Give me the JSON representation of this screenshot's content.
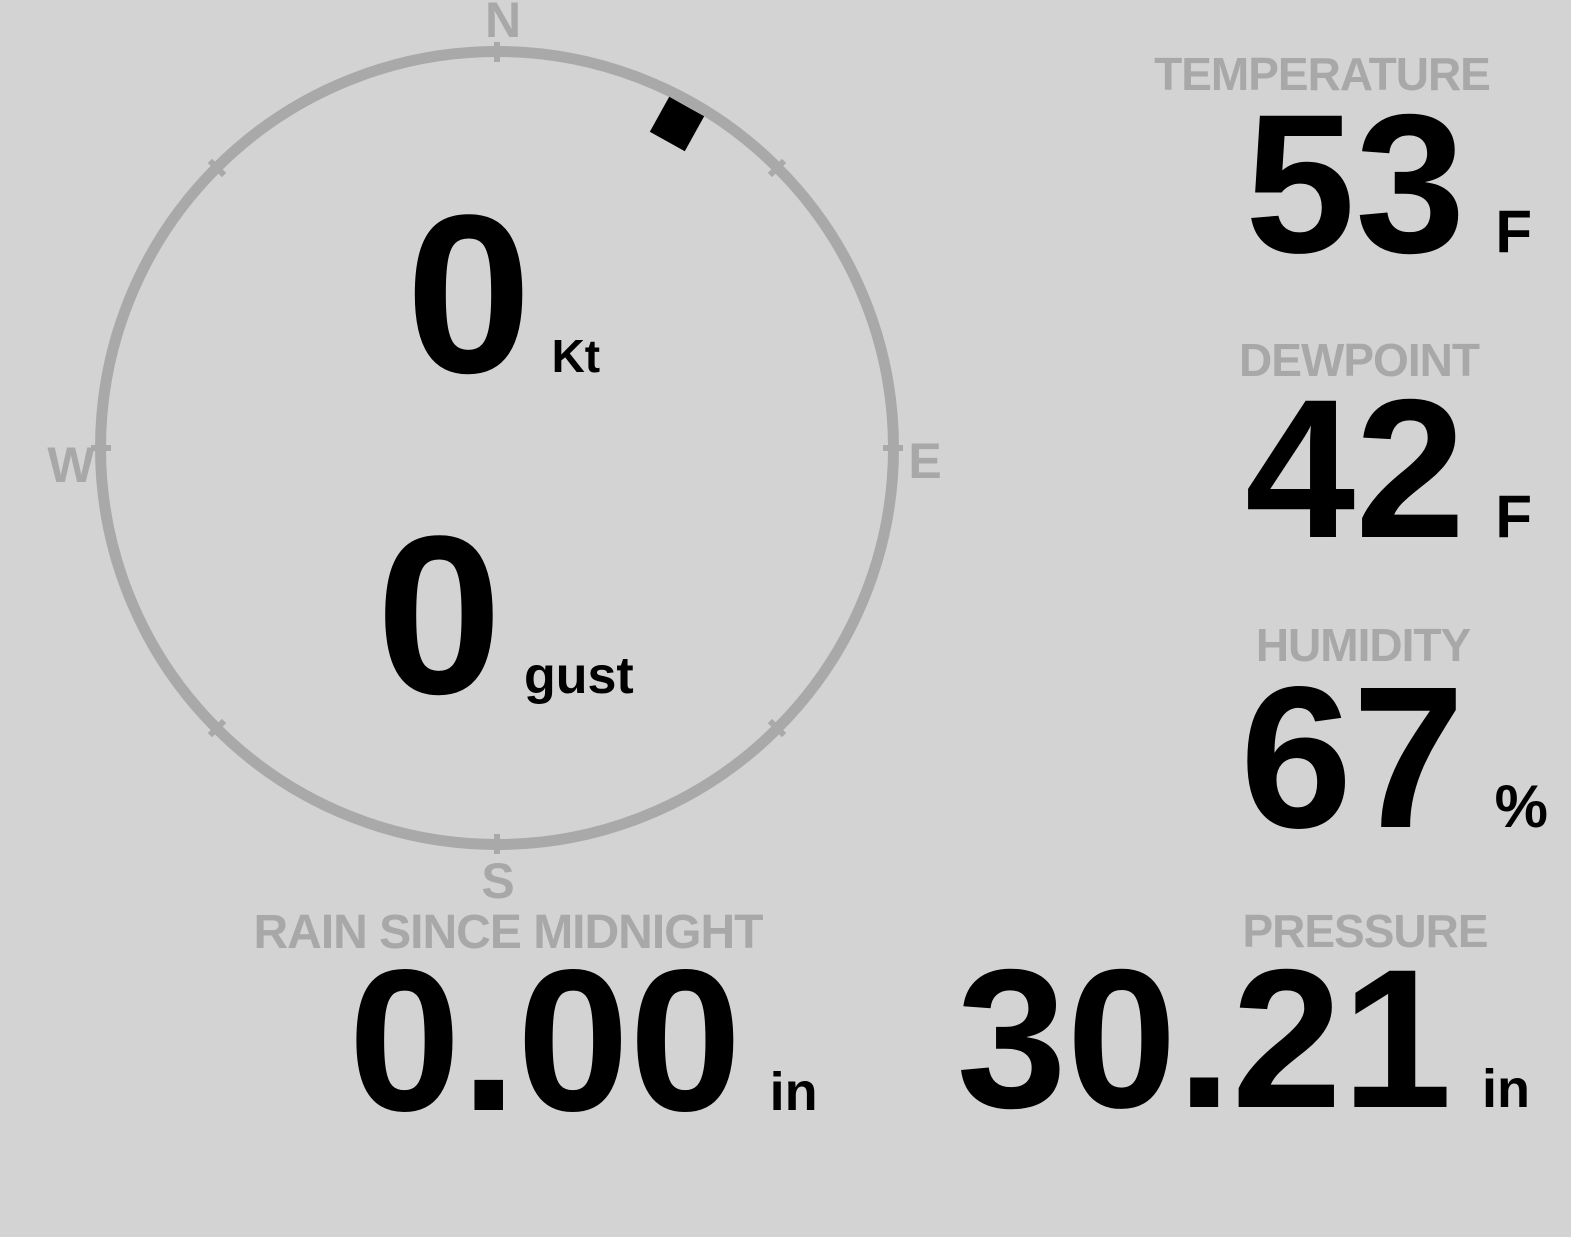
{
  "colors": {
    "background": "#d3d3d3",
    "label_gray": "#a8a8a8",
    "ring_gray": "#a9a9a9",
    "value_black": "#000000"
  },
  "compass": {
    "cardinals": {
      "north": "N",
      "east": "E",
      "south": "S",
      "west": "W"
    },
    "wind": {
      "speed": "0",
      "speed_unit": "Kt",
      "gust": "0",
      "gust_unit": "gust",
      "direction_deg": 29
    }
  },
  "metrics": {
    "temperature": {
      "label": "TEMPERATURE",
      "value": "53",
      "unit": "F"
    },
    "dewpoint": {
      "label": "DEWPOINT",
      "value": "42",
      "unit": "F"
    },
    "humidity": {
      "label": "HUMIDITY",
      "value": "67",
      "unit": "%"
    },
    "rain": {
      "label": "RAIN SINCE MIDNIGHT",
      "value": "0.00",
      "unit": "in"
    },
    "pressure": {
      "label": "PRESSURE",
      "value": "30.21",
      "unit": "in"
    }
  }
}
